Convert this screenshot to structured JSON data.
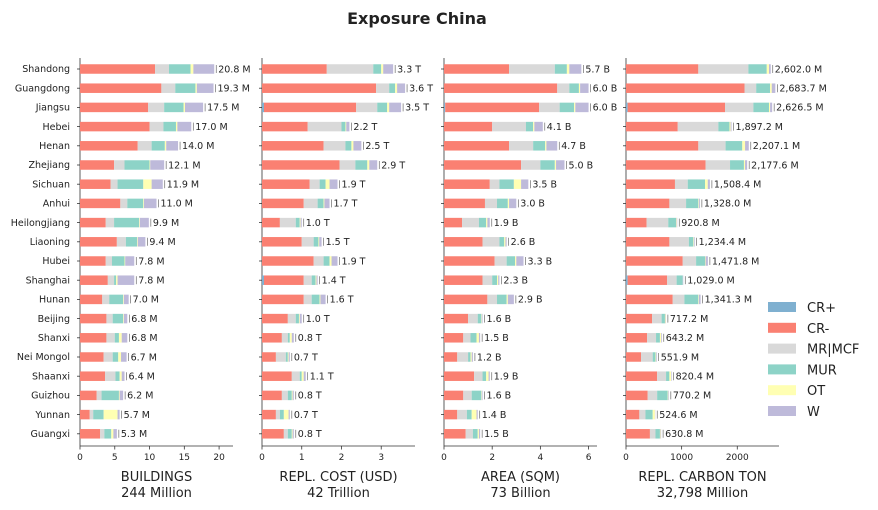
{
  "chart_data": {
    "type": "bar",
    "title": "Exposure China",
    "provinces": [
      "Shandong",
      "Guangdong",
      "Jiangsu",
      "Hebei",
      "Henan",
      "Zhejiang",
      "Sichuan",
      "Anhui",
      "Heilongjiang",
      "Liaoning",
      "Hubei",
      "Shanghai",
      "Hunan",
      "Beijing",
      "Shanxi",
      "Nei Mongol",
      "Shaanxi",
      "Guizhou",
      "Yunnan",
      "Guangxi"
    ],
    "legend": [
      {
        "name": "CR+",
        "color": "#7fb0d0"
      },
      {
        "name": "CR-",
        "color": "#fa8072"
      },
      {
        "name": "MR|MCF",
        "color": "#d9d9d9"
      },
      {
        "name": "MUR",
        "color": "#8dd3c7"
      },
      {
        "name": "OT",
        "color": "#ffffb3"
      },
      {
        "name": "W",
        "color": "#bebada"
      }
    ],
    "panels": [
      {
        "xlabel": "BUILDINGS",
        "subtitle": "244 Million",
        "xlim": [
          0,
          22
        ],
        "ticks": [
          0,
          5,
          10,
          15,
          20
        ],
        "rows": [
          {
            "v": [
              0,
              10.8,
              2.0,
              3.1,
              0.4,
              3.0
            ],
            "label": "20.8 M"
          },
          {
            "v": [
              0,
              11.7,
              2.0,
              2.9,
              0.2,
              2.4
            ],
            "label": "19.3 M"
          },
          {
            "v": [
              0,
              9.8,
              2.3,
              2.8,
              0.2,
              2.6
            ],
            "label": "17.5 M"
          },
          {
            "v": [
              0,
              10.0,
              2.0,
              1.8,
              0.2,
              2.0
            ],
            "label": "17.0 M"
          },
          {
            "v": [
              0,
              8.3,
              2.0,
              1.9,
              0.2,
              1.7
            ],
            "label": "14.0 M"
          },
          {
            "v": [
              0,
              4.9,
              1.5,
              3.6,
              0.1,
              2.0
            ],
            "label": "12.1 M"
          },
          {
            "v": [
              0,
              4.4,
              1.0,
              3.7,
              1.2,
              1.6
            ],
            "label": "11.9 M"
          },
          {
            "v": [
              0,
              5.8,
              1.0,
              2.3,
              0.1,
              1.8
            ],
            "label": "11.0 M"
          },
          {
            "v": [
              0,
              3.7,
              1.2,
              3.6,
              0.1,
              1.3
            ],
            "label": "9.9 M"
          },
          {
            "v": [
              0,
              5.3,
              1.3,
              1.6,
              0.1,
              1.1
            ],
            "label": "9.4 M"
          },
          {
            "v": [
              0,
              3.7,
              0.9,
              1.8,
              0.1,
              1.3
            ],
            "label": "7.8 M"
          },
          {
            "v": [
              0,
              4.0,
              0.9,
              0.3,
              0.2,
              2.4
            ],
            "label": "7.8 M"
          },
          {
            "v": [
              0,
              3.2,
              1.0,
              2.0,
              0.1,
              0.7
            ],
            "label": "7.0 M"
          },
          {
            "v": [
              0,
              3.8,
              0.9,
              1.5,
              0.1,
              0.5
            ],
            "label": "6.8 M"
          },
          {
            "v": [
              0,
              3.8,
              1.2,
              0.6,
              0.4,
              0.8
            ],
            "label": "6.8 M"
          },
          {
            "v": [
              0,
              3.4,
              1.3,
              0.8,
              0.4,
              0.8
            ],
            "label": "6.7 M"
          },
          {
            "v": [
              0,
              3.6,
              1.5,
              0.6,
              0.3,
              0.4
            ],
            "label": "6.4 M"
          },
          {
            "v": [
              0,
              2.4,
              0.7,
              2.5,
              0.1,
              0.5
            ],
            "label": "6.2 M"
          },
          {
            "v": [
              0,
              1.4,
              0.5,
              1.5,
              2.0,
              0.3
            ],
            "label": "5.7 M"
          },
          {
            "v": [
              0,
              2.9,
              0.6,
              1.0,
              0.3,
              0.5
            ],
            "label": "5.3 M"
          }
        ]
      },
      {
        "xlabel": "REPL. COST (USD)",
        "subtitle": "42 Trillion",
        "xlim": [
          0,
          3.85
        ],
        "ticks": [
          0,
          1,
          2,
          3
        ],
        "rows": [
          {
            "v": [
              0,
              1.63,
              1.17,
              0.2,
              0.05,
              0.25
            ],
            "label": "3.3 T"
          },
          {
            "v": [
              0,
              2.87,
              0.33,
              0.15,
              0.05,
              0.2
            ],
            "label": "3.6 T"
          },
          {
            "v": [
              0.05,
              2.32,
              0.53,
              0.25,
              0.05,
              0.3
            ],
            "label": "3.5 T"
          },
          {
            "v": [
              0,
              1.15,
              0.85,
              0.1,
              0.02,
              0.08
            ],
            "label": "2.2 T"
          },
          {
            "v": [
              0,
              1.55,
              0.55,
              0.15,
              0.05,
              0.2
            ],
            "label": "2.5 T"
          },
          {
            "v": [
              0,
              1.95,
              0.4,
              0.3,
              0.05,
              0.2
            ],
            "label": "2.9 T"
          },
          {
            "v": [
              0,
              1.2,
              0.25,
              0.15,
              0.1,
              0.2
            ],
            "label": "1.9 T"
          },
          {
            "v": [
              0,
              1.05,
              0.35,
              0.15,
              0.02,
              0.13
            ],
            "label": "1.7 T"
          },
          {
            "v": [
              0,
              0.45,
              0.4,
              0.1,
              0.02,
              0.03
            ],
            "label": "1.0 T"
          },
          {
            "v": [
              0,
              1.0,
              0.3,
              0.12,
              0.02,
              0.06
            ],
            "label": "1.5 T"
          },
          {
            "v": [
              0,
              1.3,
              0.25,
              0.15,
              0.05,
              0.15
            ],
            "label": "1.9 T"
          },
          {
            "v": [
              0.05,
              1.0,
              0.2,
              0.1,
              0.02,
              0.03
            ],
            "label": "1.4 T"
          },
          {
            "v": [
              0,
              1.05,
              0.2,
              0.2,
              0.02,
              0.13
            ],
            "label": "1.6 T"
          },
          {
            "v": [
              0,
              0.65,
              0.2,
              0.08,
              0.02,
              0.05
            ],
            "label": "1.0 T"
          },
          {
            "v": [
              0,
              0.5,
              0.15,
              0.05,
              0.05,
              0.05
            ],
            "label": "0.8 T"
          },
          {
            "v": [
              0,
              0.35,
              0.25,
              0.05,
              0.02,
              0.03
            ],
            "label": "0.7 T"
          },
          {
            "v": [
              0,
              0.75,
              0.2,
              0.05,
              0.05,
              0.05
            ],
            "label": "1.1 T"
          },
          {
            "v": [
              0,
              0.5,
              0.15,
              0.1,
              0.02,
              0.03
            ],
            "label": "0.8 T"
          },
          {
            "v": [
              0,
              0.35,
              0.1,
              0.1,
              0.12,
              0.03
            ],
            "label": "0.7 T"
          },
          {
            "v": [
              0,
              0.55,
              0.1,
              0.1,
              0.02,
              0.03
            ],
            "label": "0.8 T"
          }
        ]
      },
      {
        "xlabel": "AREA (SQM)",
        "subtitle": "73 Billion",
        "xlim": [
          0,
          6.35
        ],
        "ticks": [
          0,
          2,
          4,
          6
        ],
        "rows": [
          {
            "v": [
              0,
              2.7,
              1.9,
              0.5,
              0.1,
              0.5
            ],
            "label": "5.7 B"
          },
          {
            "v": [
              0,
              4.7,
              0.5,
              0.4,
              0.05,
              0.35
            ],
            "label": "6.0 B"
          },
          {
            "v": [
              0.05,
              3.9,
              0.85,
              0.6,
              0.05,
              0.55
            ],
            "label": "6.0 B"
          },
          {
            "v": [
              0,
              2.0,
              1.4,
              0.3,
              0.05,
              0.35
            ],
            "label": "4.1 B"
          },
          {
            "v": [
              0,
              2.7,
              1.0,
              0.5,
              0.05,
              0.45
            ],
            "label": "4.7 B"
          },
          {
            "v": [
              0,
              3.2,
              0.8,
              0.6,
              0.05,
              0.35
            ],
            "label": "5.0 B"
          },
          {
            "v": [
              0,
              1.9,
              0.4,
              0.6,
              0.3,
              0.3
            ],
            "label": "3.5 B"
          },
          {
            "v": [
              0,
              1.7,
              0.5,
              0.45,
              0.05,
              0.3
            ],
            "label": "3.0 B"
          },
          {
            "v": [
              0,
              0.75,
              0.7,
              0.3,
              0.05,
              0.1
            ],
            "label": "1.9 B"
          },
          {
            "v": [
              0,
              1.6,
              0.7,
              0.2,
              0.05,
              0.05
            ],
            "label": "2.6 B"
          },
          {
            "v": [
              0,
              2.1,
              0.5,
              0.35,
              0.05,
              0.3
            ],
            "label": "3.3 B"
          },
          {
            "v": [
              0,
              1.6,
              0.4,
              0.2,
              0.05,
              0.05
            ],
            "label": "2.3 B"
          },
          {
            "v": [
              0,
              1.8,
              0.4,
              0.4,
              0.05,
              0.25
            ],
            "label": "2.9 B"
          },
          {
            "v": [
              0,
              1.0,
              0.4,
              0.15,
              0.02,
              0.03
            ],
            "label": "1.6 B"
          },
          {
            "v": [
              0,
              0.8,
              0.3,
              0.25,
              0.1,
              0.05
            ],
            "label": "1.5 B"
          },
          {
            "v": [
              0,
              0.55,
              0.45,
              0.1,
              0.05,
              0.05
            ],
            "label": "1.2 B"
          },
          {
            "v": [
              0,
              1.25,
              0.35,
              0.15,
              0.1,
              0.05
            ],
            "label": "1.9 B"
          },
          {
            "v": [
              0,
              0.8,
              0.35,
              0.4,
              0.02,
              0.03
            ],
            "label": "1.6 B"
          },
          {
            "v": [
              0,
              0.55,
              0.4,
              0.2,
              0.2,
              0.05
            ],
            "label": "1.4 B"
          },
          {
            "v": [
              0,
              0.9,
              0.3,
              0.2,
              0.05,
              0.05
            ],
            "label": "1.5 B"
          }
        ]
      },
      {
        "xlabel": "REPL. CARBON TON",
        "subtitle": "32,798 Million",
        "xlim": [
          0,
          2750
        ],
        "ticks": [
          0,
          1000,
          2000
        ],
        "rows": [
          {
            "v": [
              0,
              1300,
              900,
              330,
              40,
              32
            ],
            "label": "2,602.0 M"
          },
          {
            "v": [
              0,
              2130,
              210,
              250,
              30,
              64
            ],
            "label": "2,683.7 M"
          },
          {
            "v": [
              30,
              1750,
              510,
              280,
              20,
              37
            ],
            "label": "2,626.5 M"
          },
          {
            "v": [
              0,
              930,
              730,
              200,
              20,
              17
            ],
            "label": "1,897.2 M"
          },
          {
            "v": [
              0,
              1300,
              490,
              300,
              50,
              67
            ],
            "label": "2,207.1 M"
          },
          {
            "v": [
              0,
              1430,
              440,
              250,
              20,
              38
            ],
            "label": "2,177.6 M"
          },
          {
            "v": [
              0,
              880,
              230,
              310,
              50,
              38
            ],
            "label": "1,508.4 M"
          },
          {
            "v": [
              0,
              780,
              300,
              220,
              10,
              18
            ],
            "label": "1,328.0 M"
          },
          {
            "v": [
              0,
              370,
              390,
              140,
              10,
              11
            ],
            "label": "920.8 M"
          },
          {
            "v": [
              0,
              780,
              350,
              80,
              10,
              14
            ],
            "label": "1,234.4 M"
          },
          {
            "v": [
              0,
              1020,
              240,
              160,
              10,
              42
            ],
            "label": "1,471.8 M"
          },
          {
            "v": [
              30,
              710,
              170,
              110,
              0,
              9
            ],
            "label": "1,029.0 M"
          },
          {
            "v": [
              0,
              840,
              210,
              250,
              10,
              31
            ],
            "label": "1,341.3 M"
          },
          {
            "v": [
              0,
              470,
              170,
              60,
              10,
              7
            ],
            "label": "717.2 M"
          },
          {
            "v": [
              0,
              380,
              160,
              70,
              20,
              13
            ],
            "label": "643.2 M"
          },
          {
            "v": [
              0,
              270,
              210,
              50,
              10,
              12
            ],
            "label": "551.9 M"
          },
          {
            "v": [
              0,
              560,
              160,
              60,
              30,
              10
            ],
            "label": "820.4 M"
          },
          {
            "v": [
              0,
              390,
              170,
              190,
              10,
              10
            ],
            "label": "770.2 M"
          },
          {
            "v": [
              0,
              240,
              110,
              130,
              40,
              5
            ],
            "label": "524.6 M"
          },
          {
            "v": [
              0,
              430,
              100,
              80,
              10,
              11
            ],
            "label": "630.8 M"
          }
        ]
      }
    ]
  }
}
